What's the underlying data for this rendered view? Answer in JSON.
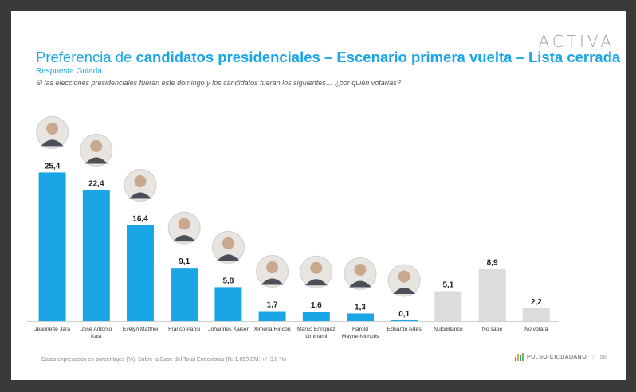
{
  "brand": "ACTIVA",
  "title": {
    "prefix": "Preferencia de ",
    "bold": "candidatos presidenciales – Escenario primera vuelta – Lista cerrada"
  },
  "subtitle": "Respuesta Guiada",
  "question": "Si las elecciones presidenciales fueran este domingo y los candidatos fueran los siguientes… ¿por quién votarías?",
  "footer": {
    "note": "Datos expresados en porcentajes (%). Sobre la Base del Total Entrevistas (N: 1.053  EM: +/- 3,0 %)",
    "logo_text": "PULSO CIUDADANO",
    "separator": "|",
    "page_number": "56"
  },
  "colors": {
    "candidate_bar": "#1aa6e6",
    "other_bar": "#dcdcdc",
    "title": "#1aa6e6"
  },
  "chart_data": {
    "type": "bar",
    "categories": [
      "Jeannette Jara",
      "José Antonio Kast",
      "Evelyn Matthei",
      "Franco Parisi",
      "Johannes Kaiser",
      "Ximena Rincón",
      "Marco Enríquez Ominami",
      "Harold Mayne-Nicholls",
      "Eduardo Artés",
      "Nulo/Blanco",
      "No sabe",
      "No votará"
    ],
    "values": [
      25.4,
      22.4,
      16.4,
      9.1,
      5.8,
      1.7,
      1.6,
      1.3,
      0.1,
      5.1,
      8.9,
      2.2
    ],
    "value_labels": [
      "25,4",
      "22,4",
      "16,4",
      "9,1",
      "5,8",
      "1,7",
      "1,6",
      "1,3",
      "0,1",
      "5,1",
      "8,9",
      "2,2"
    ],
    "label_lines": [
      [
        "Jeannette Jara"
      ],
      [
        "José Antonio",
        "Kast"
      ],
      [
        "Evelyn Matthei"
      ],
      [
        "Franco Parisi"
      ],
      [
        "Johannes Kaiser"
      ],
      [
        "Ximena Rincón"
      ],
      [
        "Marco Enriquez",
        "Ominami"
      ],
      [
        "Harold",
        "Mayne-Nicholls"
      ],
      [
        "Eduardo Artés"
      ],
      [
        "Nulo/Blanco"
      ],
      [
        "No sabe"
      ],
      [
        "No votará"
      ]
    ],
    "group": [
      "candidate",
      "candidate",
      "candidate",
      "candidate",
      "candidate",
      "candidate",
      "candidate",
      "candidate",
      "candidate",
      "other",
      "other",
      "other"
    ],
    "has_photo": [
      true,
      true,
      true,
      true,
      true,
      true,
      true,
      true,
      true,
      false,
      false,
      false
    ],
    "ylim": [
      0,
      26
    ]
  }
}
